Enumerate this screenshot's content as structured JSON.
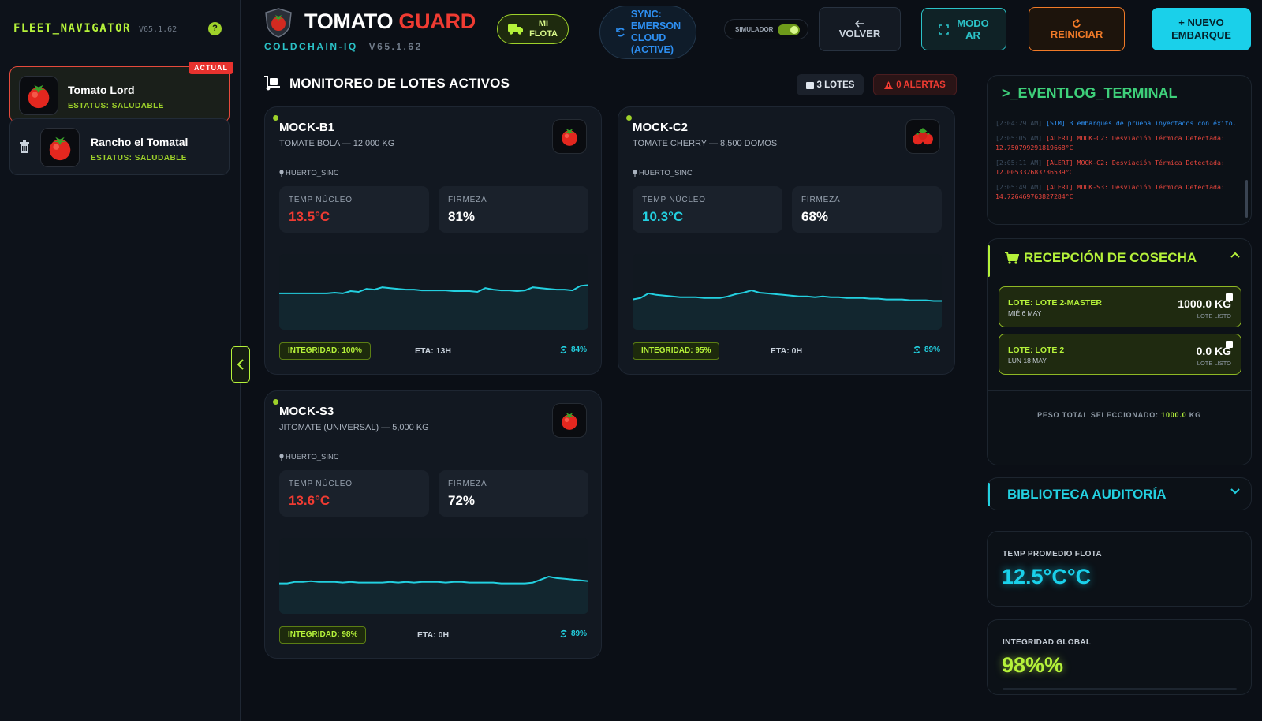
{
  "colors": {
    "lime": "#b5f23a",
    "cyan": "#23d0e0",
    "red": "#ef3b32",
    "orange": "#f07a28",
    "bg": "#0b0f16"
  },
  "sidebar": {
    "title": "FLEET_NAVIGATOR",
    "version": "V65.1.62",
    "help_label": "?",
    "farms": [
      {
        "name": "Tomato Lord",
        "status": "ESTATUS: SALUDABLE",
        "badge": "ACTUAL",
        "icon": "tomato-icon"
      },
      {
        "name": "Rancho el Tomatal",
        "status": "ESTATUS: SALUDABLE",
        "icon": "tomato-icon"
      }
    ]
  },
  "header": {
    "brand_a": "TOMATO",
    "brand_b": "GUARD",
    "subtitle": "COLDCHAIN-IQ",
    "version": "V65.1.62",
    "flota": [
      "MI",
      "FLOTA"
    ],
    "sync": [
      "SYNC:",
      "EMERSON",
      "CLOUD",
      "(ACTIVE)"
    ],
    "simulator_label": "SIMULADOR",
    "simulator_on": true,
    "volver": "VOLVER",
    "ar": [
      "MODO",
      "AR"
    ],
    "reiniciar": "REINICIAR",
    "nuevo": [
      "+ NUEVO",
      "EMBARQUE"
    ]
  },
  "main": {
    "title": "MONITOREO DE LOTES ACTIVOS",
    "lotes_label": "3 LOTES",
    "alertas_label": "0 ALERTAS",
    "temp_label": "TEMP NÚCLEO",
    "firmeza_label": "FIRMEZA",
    "cards": [
      {
        "id": "MOCK-B1",
        "desc": "TOMATE BOLA — 12,000 KG",
        "loc": "HUERTO_SINC",
        "temp": "13.5°C",
        "temp_state": "hot",
        "firmeza": "81%",
        "integridad": "INTEGRIDAD: 100%",
        "eta": "ETA: 13H",
        "signal": "84%",
        "icon": "tomato-icon",
        "trend": [
          52,
          52,
          52,
          52,
          52,
          52,
          52,
          51,
          52,
          49,
          50,
          46,
          47,
          44,
          45,
          46,
          47,
          47,
          48,
          48,
          48,
          48,
          49,
          49,
          49,
          50,
          45,
          47,
          48,
          48,
          49,
          48,
          44,
          45,
          46,
          47,
          47,
          48,
          42,
          41
        ]
      },
      {
        "id": "MOCK-C2",
        "desc": "TOMATE CHERRY — 8,500 DOMOS",
        "loc": "HUERTO_SINC",
        "temp": "10.3°C",
        "temp_state": "cool",
        "firmeza": "68%",
        "integridad": "INTEGRIDAD: 95%",
        "eta": "ETA: 0H",
        "signal": "89%",
        "icon": "cherry-tomato-icon",
        "trend": [
          60,
          58,
          52,
          54,
          55,
          56,
          57,
          57,
          57,
          58,
          58,
          58,
          56,
          53,
          51,
          48,
          51,
          52,
          53,
          54,
          55,
          56,
          56,
          57,
          56,
          57,
          57,
          58,
          58,
          58,
          59,
          59,
          60,
          60,
          60,
          61,
          61,
          61,
          62,
          62
        ]
      },
      {
        "id": "MOCK-S3",
        "desc": "JITOMATE (UNIVERSAL) — 5,000 KG",
        "loc": "HUERTO_SINC",
        "temp": "13.6°C",
        "temp_state": "hot",
        "firmeza": "72%",
        "integridad": "INTEGRIDAD: 98%",
        "eta": "ETA: 0H",
        "signal": "89%",
        "icon": "tomato-icon",
        "trend": [
          60,
          60,
          58,
          58,
          57,
          58,
          58,
          58,
          59,
          58,
          59,
          59,
          59,
          59,
          58,
          59,
          58,
          59,
          58,
          58,
          58,
          59,
          58,
          58,
          59,
          59,
          59,
          59,
          60,
          60,
          60,
          60,
          59,
          55,
          51,
          53,
          54,
          55,
          56,
          57
        ]
      }
    ]
  },
  "terminal": {
    "title": ">_EVENTLOG_TERMINAL",
    "lines": [
      {
        "ts": "[2:04:29 AM]",
        "kind": "info",
        "text": " [SIM] 3 embarques de prueba inyectados con éxito."
      },
      {
        "ts": "[2:05:05 AM]",
        "kind": "alert",
        "text": " [ALERT] MOCK-C2: Desviación Térmica Detectada: 12.750799291819668°C"
      },
      {
        "ts": "[2:05:11 AM]",
        "kind": "alert",
        "text": " [ALERT] MOCK-C2: Desviación Térmica Detectada: 12.005332683736539°C"
      },
      {
        "ts": "[2:05:49 AM]",
        "kind": "alert",
        "text": " [ALERT] MOCK-S3: Desviación Térmica Detectada: 14.726469763827284°C"
      }
    ]
  },
  "cosecha": {
    "title": "RECEPCIÓN DE COSECHA",
    "lotes": [
      {
        "name": "LOTE: LOTE 2-MASTER",
        "date": "MIÉ 6 MAY",
        "kg": "1000.0 KG",
        "status": "LOTE LISTO"
      },
      {
        "name": "LOTE: LOTE 2",
        "date": "LUN 18 MAY",
        "kg": "0.0 KG",
        "status": "LOTE LISTO"
      }
    ],
    "peso_label": "PESO TOTAL SELECCIONADO:",
    "peso_value": "1000.0",
    "peso_unit": "KG"
  },
  "biblioteca": {
    "title": "BIBLIOTECA AUDITORÍA"
  },
  "kpis": {
    "temp_label": "TEMP PROMEDIO FLOTA",
    "temp_value": "12.5°C°C",
    "integ_label": "INTEGRIDAD GLOBAL",
    "integ_value": "98%%"
  }
}
